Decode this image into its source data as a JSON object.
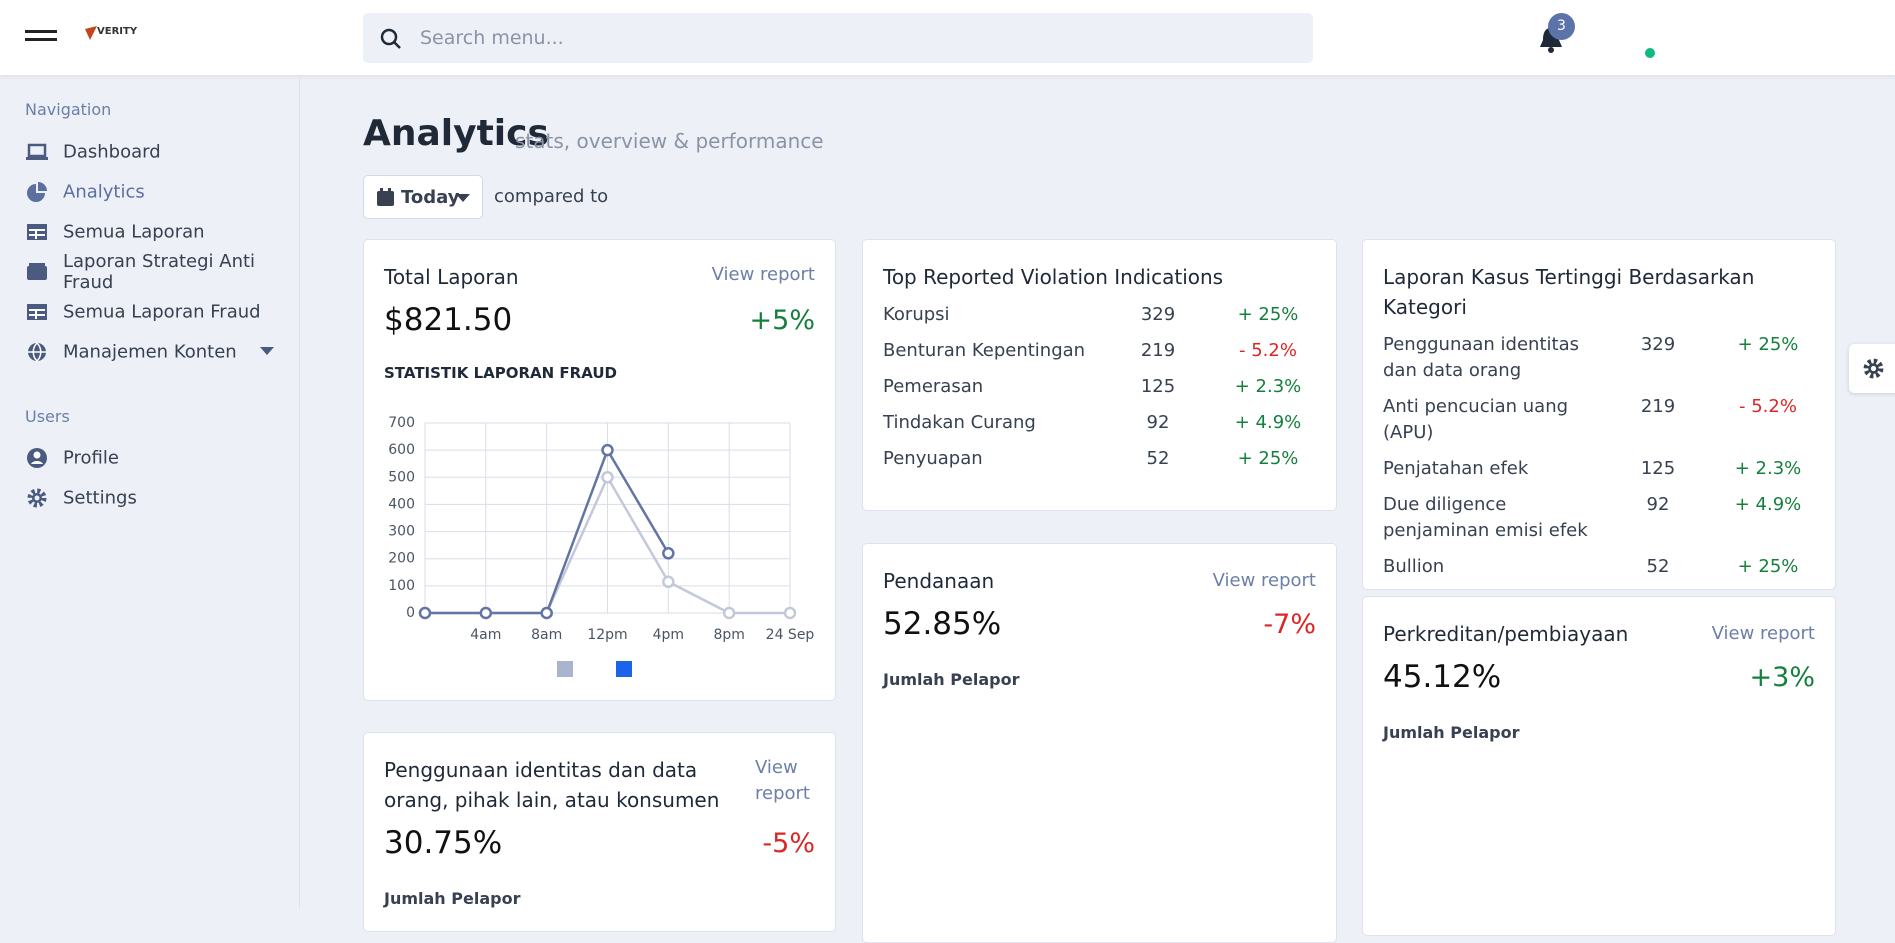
{
  "header": {
    "logo": "VERITY",
    "search_placeholder": "Search menu...",
    "notifications": 3
  },
  "sidebar": [
    {
      "title": "Navigation",
      "items": [
        "Dashboard",
        "Analytics",
        "Semua Laporan",
        "Laporan Strategi Anti Fraud",
        "Semua Laporan Fraud",
        "Manajemen Konten"
      ]
    },
    {
      "title": "Users",
      "items": [
        "Profile",
        "Settings"
      ]
    }
  ],
  "page": {
    "title": "Analytics",
    "subtitle": "stats, overview & performance",
    "range": "Today",
    "compare": "compared to"
  },
  "total_card": {
    "title": "Total Laporan",
    "link": "View report",
    "value": "$821.50",
    "change": "+5%",
    "chart_heading": "STATISTIK LAPORAN FRAUD"
  },
  "violations": {
    "title": "Top Reported Violation Indications",
    "rows": [
      {
        "name": "Korupsi",
        "count": 329,
        "change": "+ 25%"
      },
      {
        "name": "Benturan Kepentingan",
        "count": 219,
        "change": "- 5.2%"
      },
      {
        "name": "Pemerasan",
        "count": 125,
        "change": "+ 2.3%"
      },
      {
        "name": "Tindakan Curang",
        "count": 92,
        "change": "+ 4.9%"
      },
      {
        "name": "Penyuapan",
        "count": 52,
        "change": "+ 25%"
      }
    ]
  },
  "categories_card": {
    "title": "Laporan Kasus Tertinggi Berdasarkan Kategori",
    "rows": [
      {
        "name": "Penggunaan identitas dan data orang",
        "count": 329,
        "change": "+ 25%"
      },
      {
        "name": "Anti pencucian uang (APU)",
        "count": 219,
        "change": "- 5.2%"
      },
      {
        "name": "Penjatahan efek",
        "count": 125,
        "change": "+ 2.3%"
      },
      {
        "name": "Due diligence penjaminan emisi efek",
        "count": 92,
        "change": "+ 4.9%"
      },
      {
        "name": "Bullion",
        "count": 52,
        "change": "+ 25%"
      }
    ]
  },
  "stat_cards": [
    {
      "title": "Pendanaan",
      "link": "View report",
      "value": "52.85%",
      "change": "-7%",
      "footer": "Jumlah Pelapor"
    },
    {
      "title": "Perkreditan/pembiayaan",
      "link": "View report",
      "value": "45.12%",
      "change": "+3%",
      "footer": "Jumlah Pelapor"
    },
    {
      "title": "Penggunaan identitas dan data orang, pihak lain, atau konsumen",
      "link": "View report",
      "value": "30.75%",
      "change": "-5%",
      "footer": "Jumlah Pelapor"
    }
  ],
  "chart_data": {
    "type": "line",
    "categories": [
      null,
      "4am",
      "8am",
      "12pm",
      "4pm",
      "8pm",
      "24 Sep"
    ],
    "series": [
      {
        "color": "#c3c9da",
        "legend_color": "#a9b4cf",
        "values": [
          0,
          0,
          0,
          500,
          115,
          0,
          0
        ]
      },
      {
        "color": "#6275a3",
        "legend_color": "#1d63ea",
        "values": [
          0,
          0,
          0,
          600,
          220,
          null,
          null
        ]
      }
    ],
    "ylim": [
      0,
      700
    ],
    "yticks": [
      0,
      100,
      200,
      300,
      400,
      500,
      600,
      700
    ],
    "grid": true
  }
}
